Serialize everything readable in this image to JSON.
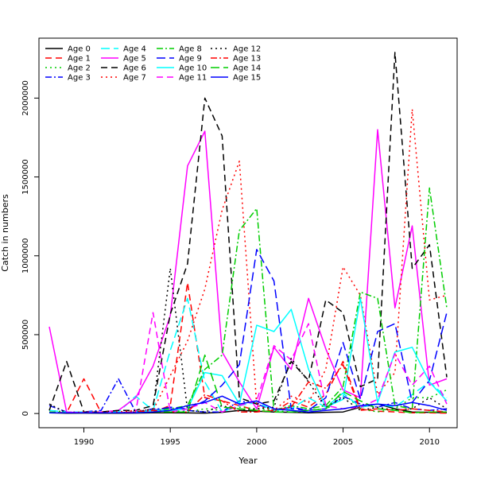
{
  "chart_data": {
    "type": "line",
    "title": "",
    "xlabel": "Year",
    "ylabel": "Catch in numbers",
    "xlim": [
      1987.4,
      2011.6
    ],
    "ylim": [
      -90000,
      2380000
    ],
    "xticks": [
      1990,
      1995,
      2000,
      2005,
      2010
    ],
    "yticks": [
      0,
      500000,
      1000000,
      1500000,
      2000000
    ],
    "grid": false,
    "legend_position": "top-left",
    "x": [
      1988,
      1989,
      1990,
      1991,
      1992,
      1993,
      1994,
      1995,
      1996,
      1997,
      1998,
      1999,
      2000,
      2001,
      2002,
      2003,
      2004,
      2005,
      2006,
      2007,
      2008,
      2009,
      2010,
      2011
    ],
    "series": [
      {
        "name": "Age 0",
        "color": "#000000",
        "dash": "solid",
        "values": [
          5000,
          2000,
          3000,
          2000,
          2000,
          3000,
          5000,
          5000,
          4000,
          3000,
          8000,
          20000,
          15000,
          10000,
          8000,
          5000,
          8000,
          10000,
          40000,
          60000,
          30000,
          10000,
          8000,
          5000
        ]
      },
      {
        "name": "Age 1",
        "color": "#FF0000",
        "dash": "8,5",
        "values": [
          10000,
          5000,
          220000,
          5000,
          5000,
          5000,
          10000,
          50000,
          830000,
          100000,
          80000,
          50000,
          20000,
          10000,
          80000,
          40000,
          120000,
          330000,
          30000,
          15000,
          10000,
          5000,
          5000,
          3000
        ]
      },
      {
        "name": "Age 2",
        "color": "#00CD00",
        "dash": "2,4",
        "values": [
          20000,
          10000,
          5000,
          10000,
          10000,
          5000,
          10000,
          20000,
          10000,
          30000,
          20000,
          40000,
          30000,
          20000,
          10000,
          10000,
          20000,
          130000,
          30000,
          10000,
          30000,
          100000,
          100000,
          150000
        ]
      },
      {
        "name": "Age 3",
        "color": "#0000FF",
        "dash": "8,3,2,3",
        "values": [
          50000,
          10000,
          10000,
          20000,
          220000,
          10000,
          30000,
          30000,
          20000,
          10000,
          10000,
          80000,
          60000,
          20000,
          40000,
          20000,
          30000,
          110000,
          60000,
          40000,
          70000,
          30000,
          20000,
          30000
        ]
      },
      {
        "name": "Age 4",
        "color": "#00FFFF",
        "dash": "11,5",
        "values": [
          20000,
          10000,
          10000,
          10000,
          10000,
          110000,
          20000,
          400000,
          730000,
          200000,
          10000,
          50000,
          70000,
          20000,
          30000,
          100000,
          40000,
          130000,
          40000,
          60000,
          40000,
          120000,
          200000,
          100000
        ]
      },
      {
        "name": "Age 5",
        "color": "#FF00FF",
        "dash": "solid",
        "values": [
          550000,
          10000,
          5000,
          10000,
          20000,
          100000,
          300000,
          620000,
          1570000,
          1790000,
          390000,
          200000,
          30000,
          420000,
          280000,
          730000,
          410000,
          150000,
          100000,
          1800000,
          670000,
          1190000,
          180000,
          220000
        ]
      },
      {
        "name": "Age 6",
        "color": "#000000",
        "dash": "8,5",
        "values": [
          20000,
          330000,
          10000,
          10000,
          20000,
          20000,
          50000,
          630000,
          950000,
          2000000,
          1760000,
          100000,
          60000,
          80000,
          330000,
          210000,
          720000,
          640000,
          170000,
          220000,
          2290000,
          920000,
          1070000,
          230000
        ]
      },
      {
        "name": "Age 7",
        "color": "#FF0000",
        "dash": "2,4",
        "values": [
          10000,
          5000,
          10000,
          10000,
          10000,
          20000,
          20000,
          240000,
          460000,
          790000,
          1290000,
          1600000,
          50000,
          20000,
          110000,
          70000,
          280000,
          930000,
          750000,
          120000,
          260000,
          1930000,
          720000,
          750000
        ]
      },
      {
        "name": "Age 8",
        "color": "#00CD00",
        "dash": "8,3,2,3",
        "values": [
          10000,
          5000,
          5000,
          5000,
          5000,
          10000,
          20000,
          30000,
          50000,
          280000,
          370000,
          1160000,
          1300000,
          20000,
          50000,
          30000,
          50000,
          170000,
          770000,
          730000,
          50000,
          30000,
          1430000,
          670000
        ]
      },
      {
        "name": "Age 9",
        "color": "#0000FF",
        "dash": "11,5",
        "values": [
          5000,
          5000,
          5000,
          5000,
          5000,
          10000,
          20000,
          40000,
          30000,
          80000,
          180000,
          310000,
          1040000,
          840000,
          30000,
          20000,
          100000,
          450000,
          90000,
          520000,
          570000,
          70000,
          210000,
          640000
        ]
      },
      {
        "name": "Age 10",
        "color": "#00FFFF",
        "dash": "solid",
        "values": [
          5000,
          5000,
          5000,
          5000,
          5000,
          10000,
          20000,
          20000,
          30000,
          260000,
          240000,
          60000,
          560000,
          520000,
          660000,
          280000,
          40000,
          90000,
          730000,
          70000,
          390000,
          420000,
          200000,
          80000
        ]
      },
      {
        "name": "Age 11",
        "color": "#FF00FF",
        "dash": "8,5",
        "values": [
          5000,
          5000,
          5000,
          5000,
          5000,
          10000,
          640000,
          10000,
          30000,
          70000,
          10000,
          50000,
          80000,
          430000,
          340000,
          570000,
          50000,
          30000,
          40000,
          90000,
          380000,
          180000,
          300000,
          60000
        ]
      },
      {
        "name": "Age 12",
        "color": "#000000",
        "dash": "2,4",
        "values": [
          60000,
          5000,
          5000,
          5000,
          5000,
          10000,
          30000,
          920000,
          20000,
          10000,
          50000,
          20000,
          30000,
          40000,
          350000,
          200000,
          40000,
          100000,
          20000,
          40000,
          20000,
          30000,
          100000,
          30000
        ]
      },
      {
        "name": "Age 13",
        "color": "#FF0000",
        "dash": "8,3,2,3",
        "values": [
          5000,
          5000,
          5000,
          5000,
          5000,
          10000,
          20000,
          10000,
          10000,
          120000,
          80000,
          10000,
          10000,
          20000,
          40000,
          200000,
          160000,
          310000,
          20000,
          30000,
          20000,
          30000,
          20000,
          10000
        ]
      },
      {
        "name": "Age 14",
        "color": "#00CD00",
        "dash": "11,5",
        "values": [
          5000,
          5000,
          5000,
          5000,
          5000,
          5000,
          10000,
          10000,
          10000,
          370000,
          40000,
          30000,
          20000,
          10000,
          10000,
          20000,
          30000,
          140000,
          80000,
          30000,
          20000,
          5000,
          10000,
          10000
        ]
      },
      {
        "name": "Age 15",
        "color": "#0000FF",
        "dash": "solid",
        "values": [
          5000,
          5000,
          5000,
          5000,
          5000,
          5000,
          10000,
          20000,
          50000,
          70000,
          110000,
          60000,
          80000,
          30000,
          20000,
          10000,
          20000,
          30000,
          50000,
          60000,
          50000,
          70000,
          50000,
          20000
        ]
      }
    ]
  }
}
